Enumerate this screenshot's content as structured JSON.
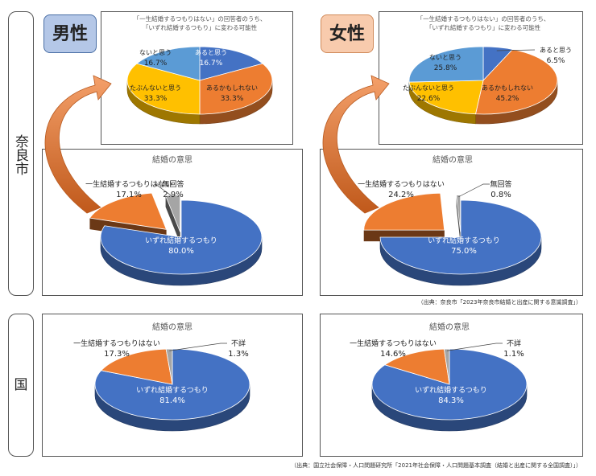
{
  "row_labels": {
    "nara": "奈良市",
    "national": "国"
  },
  "gender_labels": {
    "male": "男性",
    "female": "女性"
  },
  "gender_colors": {
    "male": "#b4c7e7",
    "female": "#f8cbad"
  },
  "colors": {
    "blue": "#4472c4",
    "orange": "#ed7d31",
    "yellow": "#ffc000",
    "lightblue": "#5b9bd5",
    "gray": "#a5a5a5"
  },
  "sources": {
    "nara": "（出典：奈良市「2023年奈良市結婚と出産に関する意識調査」）",
    "national": "（出典：国立社会保障・人口問題研究所「2021年社会保障・人口問題基本調査（結婚と出産に関する全国調査）」）"
  },
  "chart_data": [
    {
      "id": "nara-male-possibility",
      "type": "pie",
      "title": "「一生結婚するつもりはない」の回答者のうち、「いずれ結婚するつもり」に変わる可能性",
      "slices": [
        {
          "label": "あると思う",
          "value": 16.7,
          "value_label": "16.7%",
          "color": "#4472c4"
        },
        {
          "label": "あるかもしれない",
          "value": 33.3,
          "value_label": "33.3%",
          "color": "#ed7d31"
        },
        {
          "label": "たぶんないと思う",
          "value": 33.3,
          "value_label": "33.3%",
          "color": "#ffc000"
        },
        {
          "label": "ないと思う",
          "value": 16.7,
          "value_label": "16.7%",
          "color": "#5b9bd5"
        }
      ]
    },
    {
      "id": "nara-female-possibility",
      "type": "pie",
      "title": "「一生結婚するつもりはない」の回答者のうち、「いずれ結婚するつもり」に変わる可能性",
      "slices": [
        {
          "label": "あると思う",
          "value": 6.5,
          "value_label": "6.5%",
          "color": "#4472c4"
        },
        {
          "label": "あるかもしれない",
          "value": 45.2,
          "value_label": "45.2%",
          "color": "#ed7d31"
        },
        {
          "label": "たぶんないと思う",
          "value": 22.6,
          "value_label": "22.6%",
          "color": "#ffc000"
        },
        {
          "label": "ないと思う",
          "value": 25.8,
          "value_label": "25.8%",
          "color": "#5b9bd5"
        }
      ]
    },
    {
      "id": "nara-male-intention",
      "type": "pie",
      "title": "結婚の意思",
      "slices": [
        {
          "label": "いずれ結婚するつもり",
          "value": 80.0,
          "value_label": "80.0%",
          "color": "#4472c4"
        },
        {
          "label": "一生結婚するつもりはない",
          "value": 17.1,
          "value_label": "17.1%",
          "color": "#ed7d31"
        },
        {
          "label": "無回答",
          "value": 2.9,
          "value_label": "2.9%",
          "color": "#a5a5a5"
        }
      ]
    },
    {
      "id": "nara-female-intention",
      "type": "pie",
      "title": "結婚の意思",
      "slices": [
        {
          "label": "いずれ結婚するつもり",
          "value": 75.0,
          "value_label": "75.0%",
          "color": "#4472c4"
        },
        {
          "label": "一生結婚するつもりはない",
          "value": 24.2,
          "value_label": "24.2%",
          "color": "#ed7d31"
        },
        {
          "label": "無回答",
          "value": 0.8,
          "value_label": "0.8%",
          "color": "#a5a5a5"
        }
      ]
    },
    {
      "id": "national-male-intention",
      "type": "pie",
      "title": "結婚の意思",
      "slices": [
        {
          "label": "いずれ結婚するつもり",
          "value": 81.4,
          "value_label": "81.4%",
          "color": "#4472c4"
        },
        {
          "label": "一生結婚するつもりはない",
          "value": 17.3,
          "value_label": "17.3%",
          "color": "#ed7d31"
        },
        {
          "label": "不詳",
          "value": 1.3,
          "value_label": "1.3%",
          "color": "#a5a5a5"
        }
      ]
    },
    {
      "id": "national-female-intention",
      "type": "pie",
      "title": "結婚の意思",
      "slices": [
        {
          "label": "いずれ結婚するつもり",
          "value": 84.3,
          "value_label": "84.3%",
          "color": "#4472c4"
        },
        {
          "label": "一生結婚するつもりはない",
          "value": 14.6,
          "value_label": "14.6%",
          "color": "#ed7d31"
        },
        {
          "label": "不詳",
          "value": 1.1,
          "value_label": "1.1%",
          "color": "#a5a5a5"
        }
      ]
    }
  ]
}
